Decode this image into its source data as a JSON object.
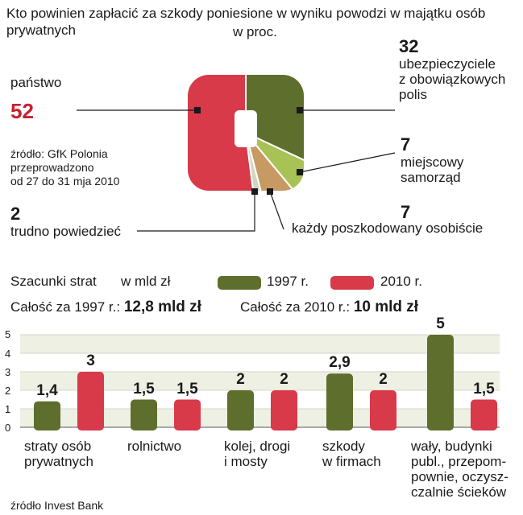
{
  "chart_data": [
    {
      "type": "pie",
      "title": "Kto powinien zapłacić za szkody poniesione w wyniku powodzi w majątku osób prywatnych",
      "unit": "w proc.",
      "source": "źródło: GfK Polonia\nprzeprowadzono\nod 27 do 31 mja 2010",
      "slices": [
        {
          "label": "państwo",
          "value": 52,
          "color": "#d83a49"
        },
        {
          "label": "ubezpieczyciele\nz obowiązkowych\npolis",
          "value": 32,
          "color": "#5e6e2c"
        },
        {
          "label": "miejscowy\nsamorząd",
          "value": 7,
          "color": "#a9c256"
        },
        {
          "label": "każdy poszkodowany osobiście",
          "value": 7,
          "color": "#c79a63"
        },
        {
          "label": "trudno powiedzieć",
          "value": 2,
          "color": "#d2d6c0"
        }
      ]
    },
    {
      "type": "bar",
      "title": "Szacunki strat",
      "unit": "w mld zł",
      "totals": [
        {
          "prefix": "Całość za 1997 r.:",
          "value": "12,8 mld zł"
        },
        {
          "prefix": "Całość za 2010 r.:",
          "value": "10 mld zł"
        }
      ],
      "categories": [
        "straty osób\nprywatnych",
        "rolnictwo",
        "kolej, drogi\ni mosty",
        "szkody\nw firmach",
        "wały, budynki\npubl., przepom-\npownie, oczysz-\nczalnie ścieków"
      ],
      "series": [
        {
          "name": "1997 r.",
          "color": "#5e6e2c",
          "values": [
            1.4,
            1.5,
            2,
            2.9,
            5
          ],
          "labels": [
            "1,4",
            "1,5",
            "2",
            "2,9",
            "5"
          ]
        },
        {
          "name": "2010 r.",
          "color": "#d83a49",
          "values": [
            3,
            1.5,
            2,
            2,
            1.5
          ],
          "labels": [
            "3",
            "1,5",
            "2",
            "2",
            "1,5"
          ]
        }
      ],
      "yticks": [
        "0",
        "1",
        "2",
        "3",
        "4",
        "5"
      ],
      "ylim": [
        0,
        5
      ],
      "grid": true,
      "source": "źródło Invest Bank"
    }
  ]
}
